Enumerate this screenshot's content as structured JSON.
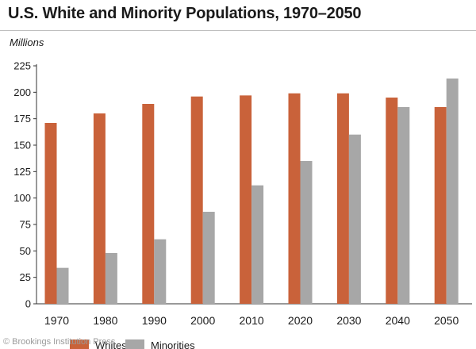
{
  "colors": {
    "whites": "#c9623a",
    "minorities": "#a7a7a7"
  },
  "credit": "© Brookings Institution Press",
  "chart_data": {
    "type": "bar",
    "title": "U.S. White and Minority Populations, 1970–2050",
    "xlabel": "",
    "ylabel": "Millions",
    "ylim": [
      0,
      225
    ],
    "yticks": [
      0,
      25,
      50,
      75,
      100,
      125,
      150,
      175,
      200,
      225
    ],
    "grid": false,
    "legend_position": "bottom",
    "categories": [
      "1970",
      "1980",
      "1990",
      "2000",
      "2010",
      "2020",
      "2030",
      "2040",
      "2050"
    ],
    "series": [
      {
        "name": "Whites",
        "values": [
          171,
          180,
          189,
          196,
          197,
          199,
          199,
          195,
          186
        ]
      },
      {
        "name": "Minorities",
        "values": [
          34,
          48,
          61,
          87,
          112,
          135,
          160,
          186,
          213
        ]
      }
    ]
  }
}
